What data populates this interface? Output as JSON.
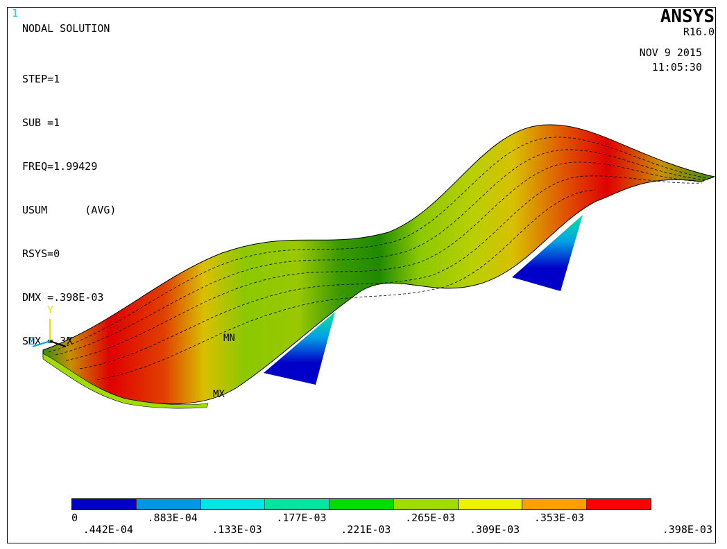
{
  "window": {
    "number": "1"
  },
  "brand": {
    "name": "ANSYS",
    "version": "R16.0"
  },
  "datetime": {
    "date": "NOV  9 2015",
    "time": "11:05:30"
  },
  "info": {
    "title": "NODAL SOLUTION",
    "lines": [
      "STEP=1",
      "SUB =1",
      "FREQ=1.99429",
      "USUM      (AVG)",
      "RSYS=0",
      "DMX =.398E-03",
      "SMX =.398E-03"
    ]
  },
  "markers": {
    "min": "MN",
    "max": "MX"
  },
  "axes": {
    "x": "X",
    "y": "Y",
    "z": "Z"
  },
  "legend": {
    "colors": [
      "#0000c8",
      "#0096e6",
      "#00e6e6",
      "#00e6a0",
      "#00dc00",
      "#a0dc00",
      "#f0f000",
      "#ffa000",
      "#ff0000"
    ],
    "upper_labels": [
      "0",
      ".883E-04",
      ".177E-03",
      ".265E-03",
      ".353E-03"
    ],
    "lower_labels": [
      ".442E-04",
      ".133E-03",
      ".221E-03",
      ".309E-03",
      ".398E-03"
    ]
  }
}
